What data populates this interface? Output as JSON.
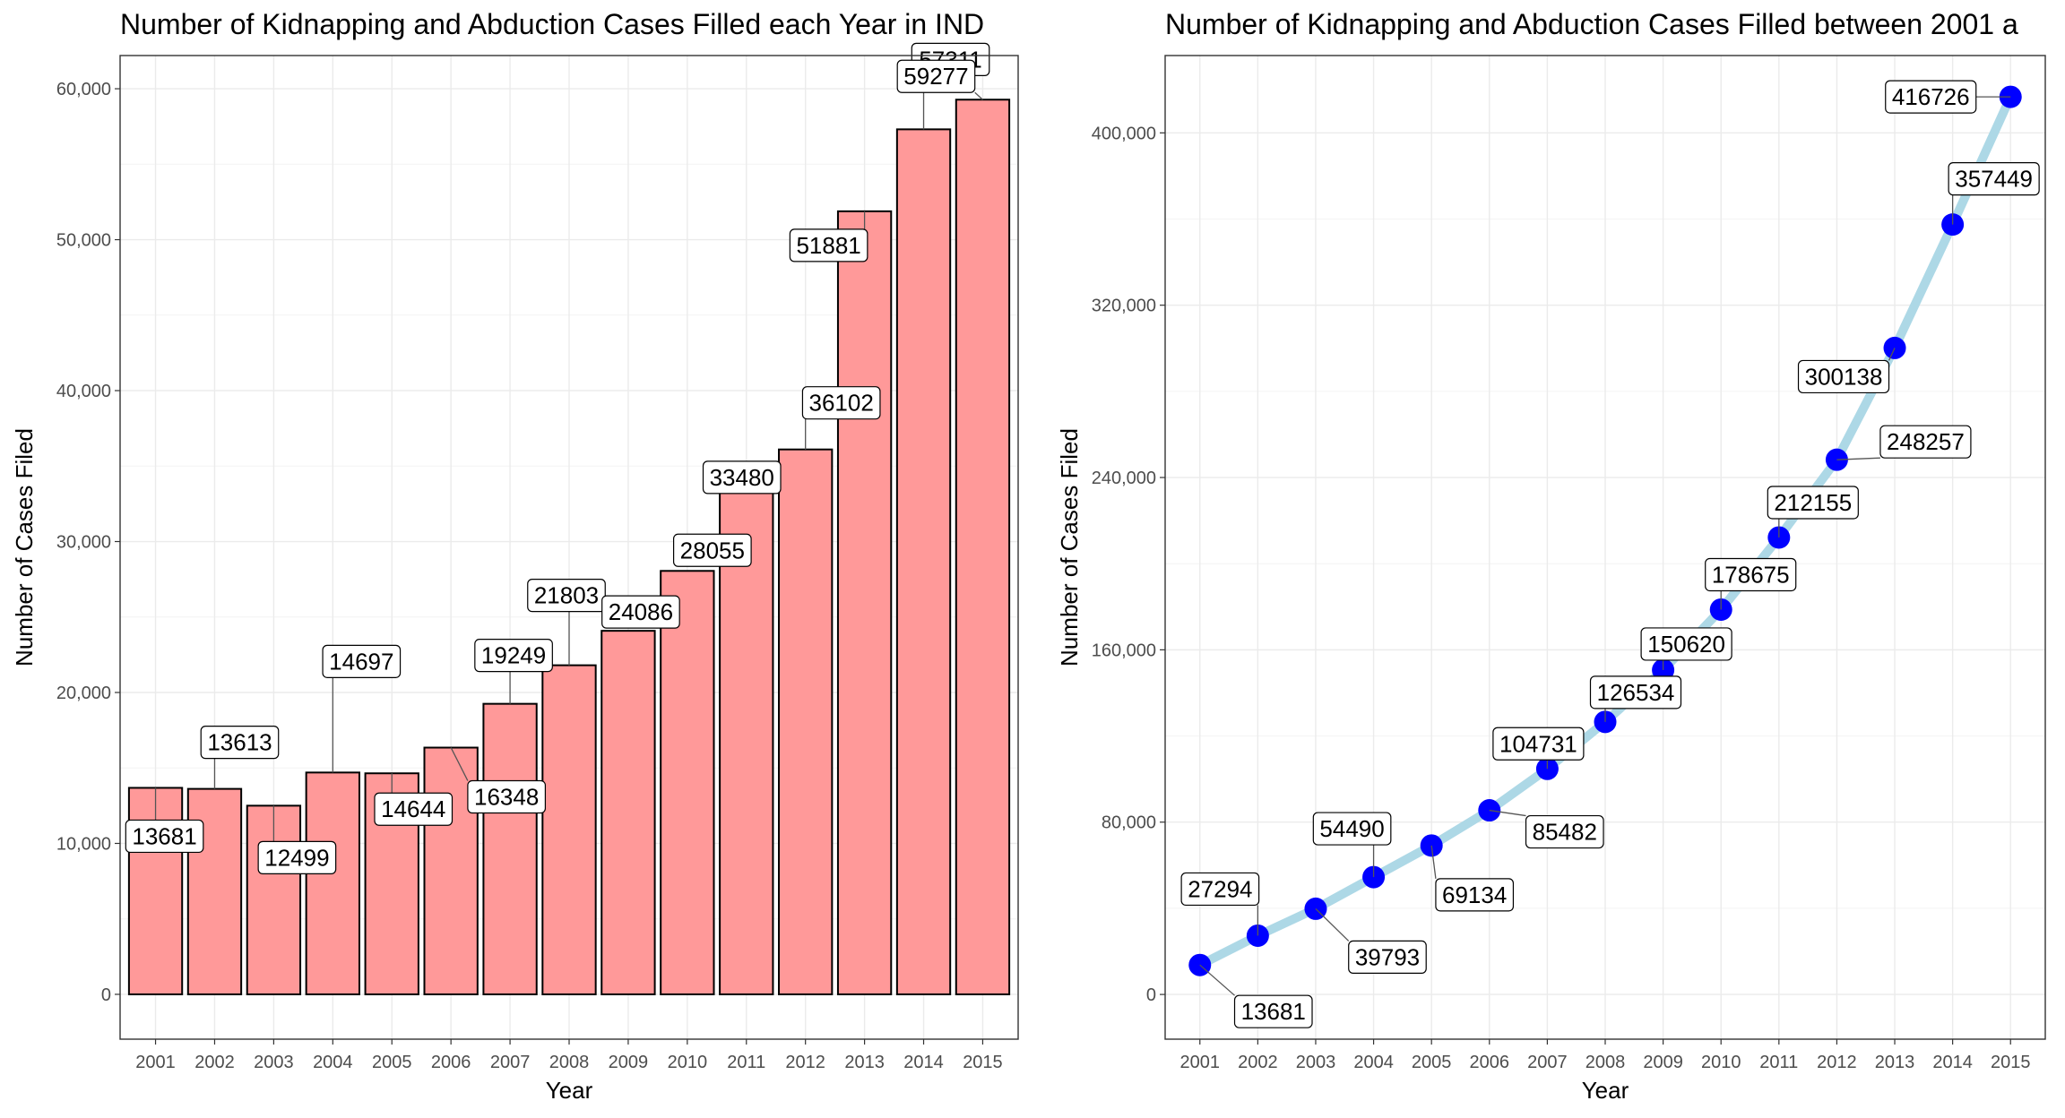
{
  "chart_data": [
    {
      "type": "bar",
      "title": "Number of Kidnapping and Abduction Cases Filled each Year in IND",
      "xlabel": "Year",
      "ylabel": "Number of  Cases Filed",
      "categories": [
        "2001",
        "2002",
        "2003",
        "2004",
        "2005",
        "2006",
        "2007",
        "2008",
        "2009",
        "2010",
        "2011",
        "2012",
        "2013",
        "2014",
        "2015"
      ],
      "values": [
        13681,
        13613,
        12499,
        14697,
        14644,
        16348,
        19249,
        21803,
        24086,
        28055,
        33480,
        36102,
        51881,
        57311,
        59277
      ],
      "labels": [
        "13681",
        "13613",
        "12499",
        "14697",
        "14644",
        "16348",
        "19249",
        "21803",
        "24086",
        "28055",
        "33480",
        "36102",
        "51881",
        "57311",
        "59277"
      ],
      "yticks": [
        0,
        10000,
        20000,
        30000,
        40000,
        50000,
        60000
      ],
      "ytick_labels": [
        "0",
        "10,000",
        "20,000",
        "30,000",
        "40,000",
        "50,000",
        "60,000"
      ],
      "ylim": [
        0,
        62000
      ],
      "bar_color": "#ff9999",
      "grid": true
    },
    {
      "type": "line",
      "title": "Number of Kidnapping and Abduction Cases Filled between 2001 a",
      "xlabel": "Year",
      "ylabel": "Number of Cases Filed",
      "categories": [
        "2001",
        "2002",
        "2003",
        "2004",
        "2005",
        "2006",
        "2007",
        "2008",
        "2009",
        "2010",
        "2011",
        "2012",
        "2013",
        "2014",
        "2015"
      ],
      "values": [
        13681,
        27294,
        39793,
        54490,
        69134,
        85482,
        104731,
        126534,
        150620,
        178675,
        212155,
        248257,
        300138,
        357449,
        416726
      ],
      "labels": [
        "13681",
        "27294",
        "39793",
        "54490",
        "69134",
        "85482",
        "104731",
        "126534",
        "150620",
        "178675",
        "212155",
        "248257",
        "300138",
        "357449",
        "416726"
      ],
      "yticks": [
        0,
        80000,
        160000,
        240000,
        320000,
        400000
      ],
      "ytick_labels": [
        "0",
        "80,000",
        "160,000",
        "240,000",
        "320,000",
        "400,000"
      ],
      "ylim": [
        0,
        425000
      ],
      "line_color": "#add8e6",
      "point_color": "#0000ff",
      "grid": true
    }
  ]
}
